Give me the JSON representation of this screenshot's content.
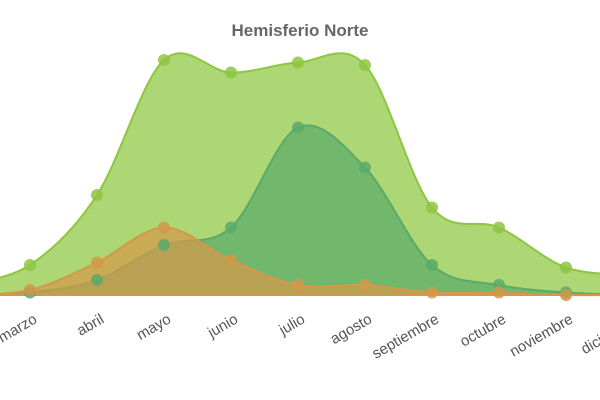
{
  "chart_data": {
    "type": "area",
    "title": "Hemisferio Norte",
    "categories": [
      null,
      "marzo",
      "abril",
      "mayo",
      "junio",
      "julio",
      "agosto",
      "septiembre",
      "octubre",
      "noviembre",
      "diciembre"
    ],
    "series": [
      {
        "color": "#8dc63f",
        "values": [
          4,
          12,
          40,
          94,
          89,
          93,
          92,
          35,
          27,
          11,
          8
        ]
      },
      {
        "color": "#5aaa6a",
        "values": [
          0,
          1,
          6,
          20,
          27,
          67,
          51,
          12,
          4,
          1,
          0
        ]
      },
      {
        "color": "#d4984a",
        "values": [
          0,
          2,
          13,
          27,
          14,
          4,
          4,
          1,
          1,
          0,
          0
        ]
      }
    ]
  }
}
